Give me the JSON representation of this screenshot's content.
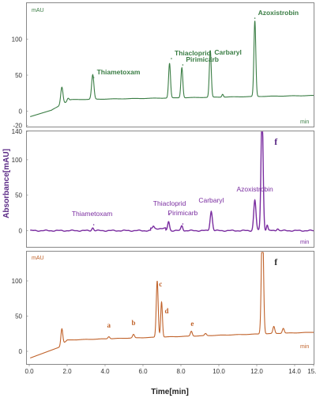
{
  "chart_data": [
    {
      "type": "line",
      "panel": "top",
      "color": "#3a7d44",
      "unit_label": "mAU",
      "x_unit_label": "min",
      "y_ticks": [
        "100",
        "50",
        "0",
        "-20"
      ],
      "ylim": [
        -20,
        150
      ],
      "xlim": [
        0,
        15
      ],
      "peak_labels": [
        {
          "text": "Thiametoxam",
          "x": 3.4,
          "bold": true
        },
        {
          "text": "Thiacloprid",
          "x": 7.5,
          "bold": true
        },
        {
          "text": "Pirimicarb",
          "x": 8.1,
          "bold": true
        },
        {
          "text": "Carbaryl",
          "x": 9.6,
          "bold": true
        },
        {
          "text": "Azoxistrobin",
          "x": 11.9,
          "bold": true
        }
      ]
    },
    {
      "type": "line",
      "panel": "middle",
      "color": "#7a2da0",
      "unit_label": "min",
      "y_ticks": [
        "140",
        "100",
        "50",
        "0"
      ],
      "ylim": [
        -5,
        145
      ],
      "xlim": [
        0,
        15
      ],
      "peak_labels": [
        {
          "text": "Thiametoxam",
          "x": 3.4
        },
        {
          "text": "Thiacloprid",
          "x": 7.4
        },
        {
          "text": "Pirimicarb",
          "x": 8.1
        },
        {
          "text": "Carbaryl",
          "x": 9.6
        },
        {
          "text": "Azoxistrobin",
          "x": 11.9
        }
      ],
      "extra_label": {
        "text": "f",
        "x": 12.3
      }
    },
    {
      "type": "line",
      "panel": "bottom",
      "color": "#c0622a",
      "unit_label": "mAU",
      "x_unit_label": "min",
      "y_ticks": [
        "100",
        "50",
        "0"
      ],
      "ylim": [
        -15,
        148
      ],
      "xlim": [
        0,
        15
      ],
      "peak_labels": [
        {
          "text": "a",
          "x": 4.2
        },
        {
          "text": "b",
          "x": 5.5
        },
        {
          "text": "c",
          "x": 6.8
        },
        {
          "text": "d",
          "x": 7.0
        },
        {
          "text": "e",
          "x": 8.6
        }
      ],
      "extra_label": {
        "text": "f",
        "x": 12.3
      },
      "x_ticks": [
        "0.0",
        "2.0",
        "4.0",
        "6.0",
        "8.0",
        "10.0",
        "12.0",
        "14.0",
        "15.0"
      ]
    }
  ],
  "shared": {
    "ylabel": "Absorbance[mAU]",
    "xlabel": "Time[min]"
  }
}
